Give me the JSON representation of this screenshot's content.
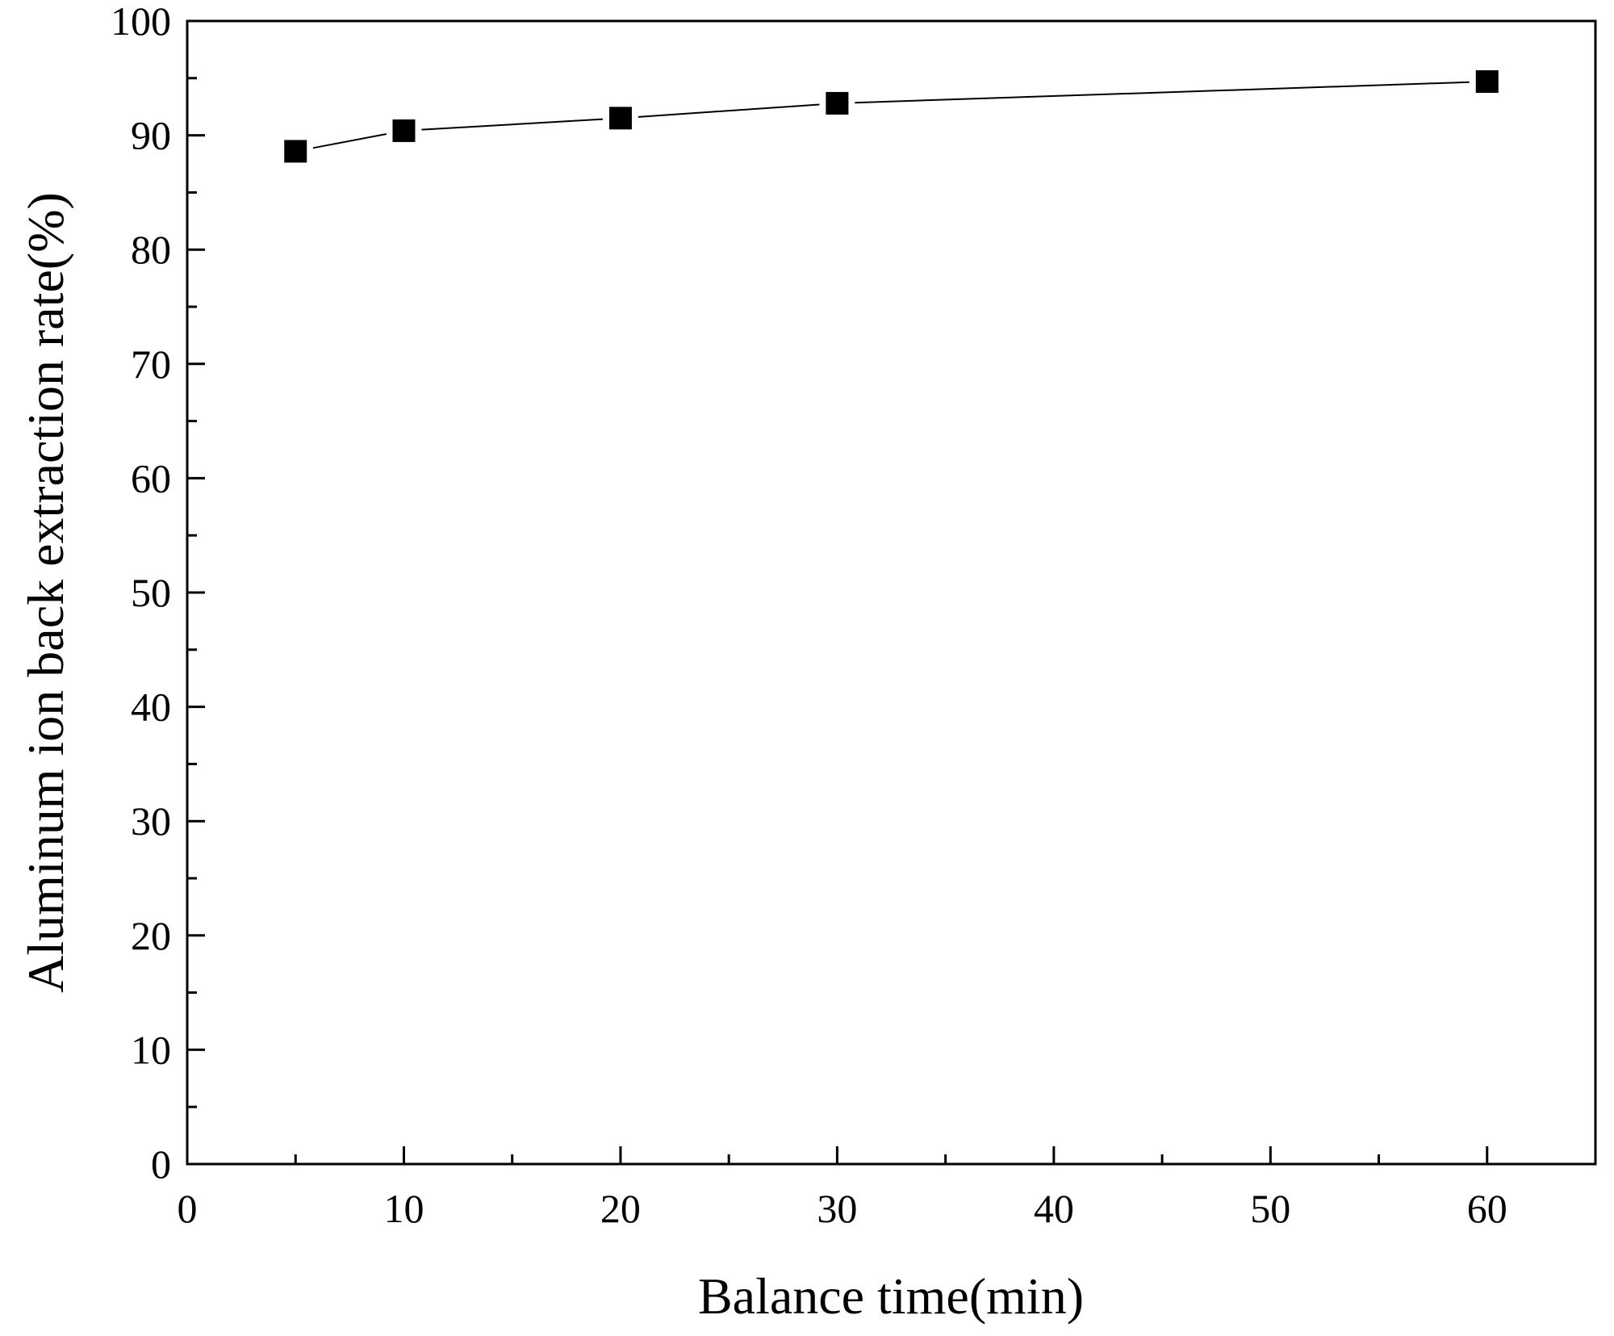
{
  "chart_data": {
    "type": "line",
    "title": "",
    "xlabel": "Balance time(min)",
    "ylabel": "Aluminum ion back extraction rate(%)",
    "xlim": [
      0,
      65
    ],
    "ylim": [
      0,
      100
    ],
    "x_ticks": [
      0,
      10,
      20,
      30,
      40,
      50,
      60
    ],
    "y_ticks": [
      0,
      10,
      20,
      30,
      40,
      50,
      60,
      70,
      80,
      90,
      100
    ],
    "grid": false,
    "legend": "none",
    "marker": "square",
    "series": [
      {
        "x": [
          5,
          10,
          20,
          30,
          60
        ],
        "y": [
          88.6,
          90.4,
          91.5,
          92.8,
          94.7
        ],
        "color": "#000000"
      }
    ]
  }
}
